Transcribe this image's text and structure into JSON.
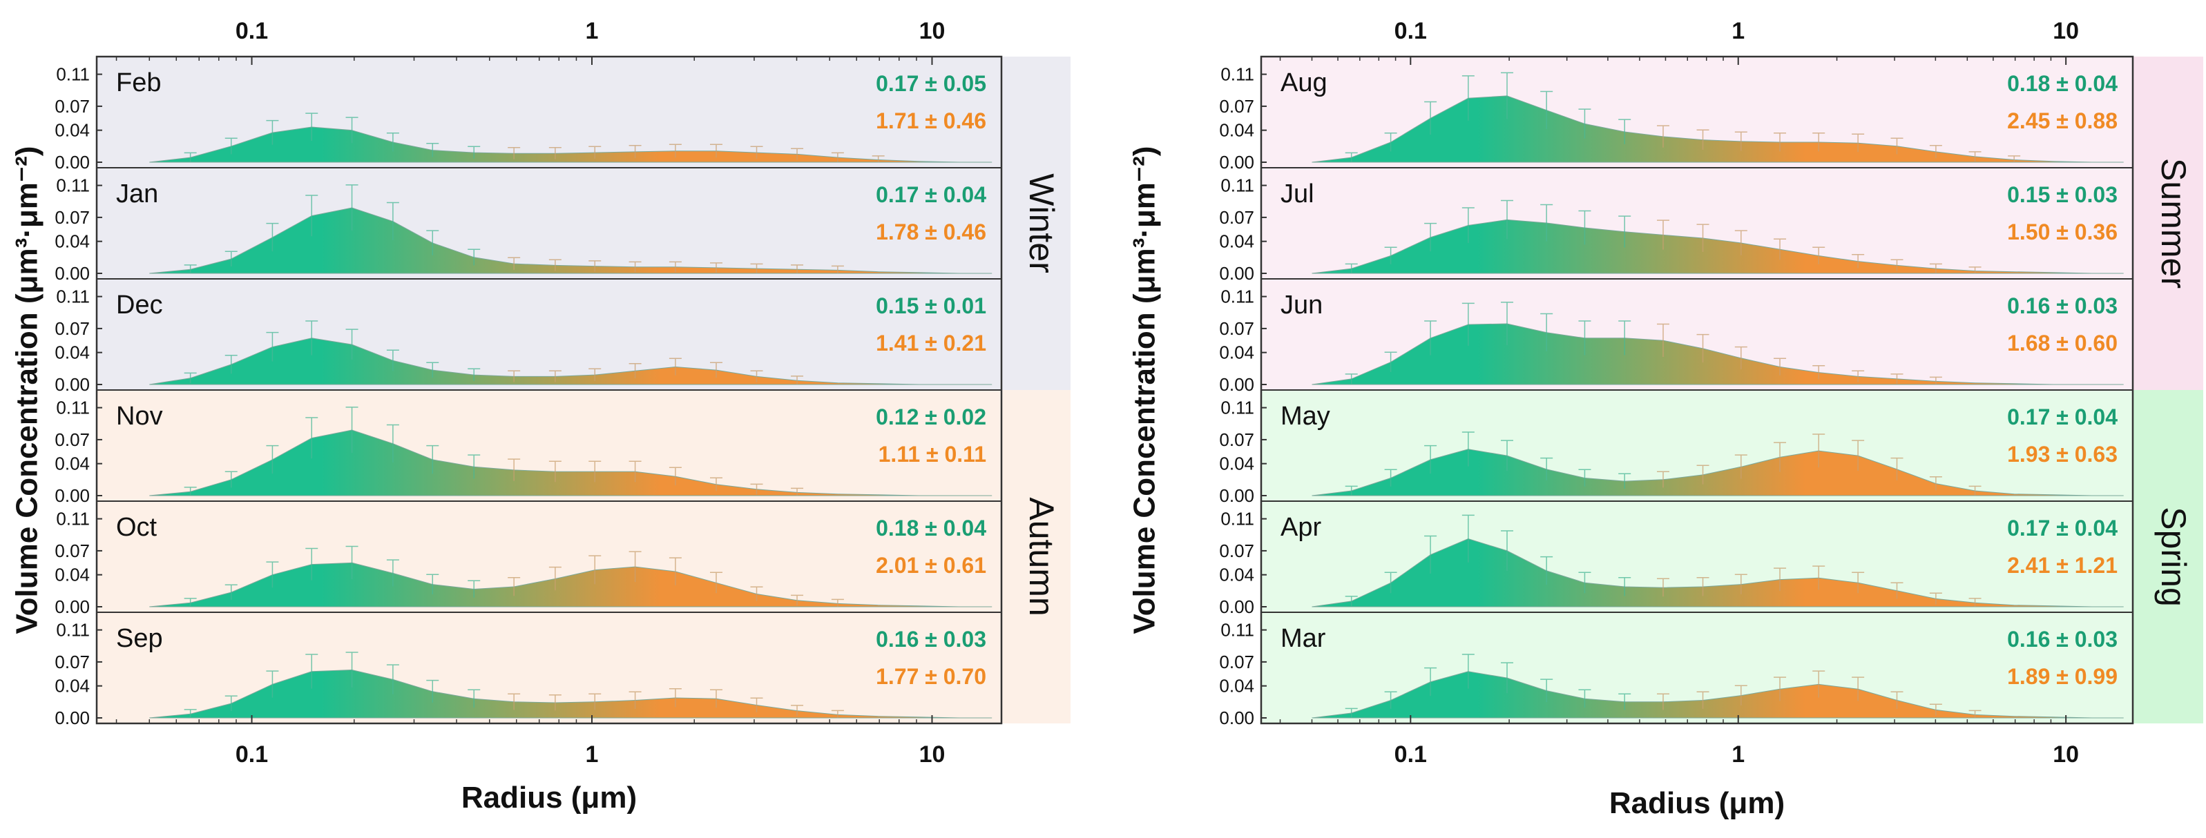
{
  "colors": {
    "fine": "#1dbf8f",
    "coarse": "#f0923a",
    "fine_text": "#1a9e73",
    "coarse_text": "#f08a24",
    "winter_bg": "#ebebf2",
    "autumn_bg": "#fdf0e7",
    "summer_bg": "#fbeef5",
    "spring_bg": "#e6fbe9",
    "summer_band": "#f9e2ee",
    "spring_band": "#d0f7d7"
  },
  "chart_data": [
    {
      "type": "area",
      "xlabel": "Radius (μm)",
      "ylabel": "Volume Concentration (μm³·μm⁻²)",
      "x_scale": "log",
      "xlim": [
        0.035,
        16
      ],
      "xticks": [
        "0.1",
        "1",
        "10"
      ],
      "ylim": [
        0,
        0.12
      ],
      "yticks": [
        "0.00",
        "0.04",
        "0.07",
        "0.11"
      ],
      "grid": false,
      "seasons": [
        {
          "name": "Winter",
          "band": "winter",
          "panels": 3
        },
        {
          "name": "Autumn",
          "band": "autumn",
          "panels": 3
        }
      ],
      "panels": [
        {
          "month": "Feb",
          "fine_text": "0.17 ± 0.05",
          "coarse_text": "1.71 ± 0.46",
          "season": "winter",
          "x": [
            0.05,
            0.066,
            0.087,
            0.115,
            0.15,
            0.197,
            0.26,
            0.34,
            0.45,
            0.59,
            0.78,
            1.02,
            1.34,
            1.76,
            2.32,
            3.05,
            4.01,
            5.28,
            6.95,
            9.14,
            12.0,
            15.0
          ],
          "y": [
            0.0,
            0.006,
            0.02,
            0.037,
            0.044,
            0.04,
            0.025,
            0.015,
            0.012,
            0.011,
            0.011,
            0.012,
            0.013,
            0.014,
            0.014,
            0.012,
            0.01,
            0.006,
            0.003,
            0.001,
            0.0,
            0.0
          ]
        },
        {
          "month": "Jan",
          "fine_text": "0.17 ± 0.04",
          "coarse_text": "1.78 ± 0.46",
          "season": "winter",
          "x": [
            0.05,
            0.066,
            0.087,
            0.115,
            0.15,
            0.197,
            0.26,
            0.34,
            0.45,
            0.59,
            0.78,
            1.02,
            1.34,
            1.76,
            2.32,
            3.05,
            4.01,
            5.28,
            6.95,
            9.14,
            12.0,
            15.0
          ],
          "y": [
            0.0,
            0.005,
            0.018,
            0.045,
            0.072,
            0.082,
            0.065,
            0.038,
            0.02,
            0.012,
            0.01,
            0.009,
            0.008,
            0.008,
            0.007,
            0.006,
            0.005,
            0.004,
            0.002,
            0.001,
            0.0,
            0.0
          ]
        },
        {
          "month": "Dec",
          "fine_text": "0.15 ± 0.01",
          "coarse_text": "1.41 ± 0.21",
          "season": "winter",
          "x": [
            0.05,
            0.066,
            0.087,
            0.115,
            0.15,
            0.197,
            0.26,
            0.34,
            0.45,
            0.59,
            0.78,
            1.02,
            1.34,
            1.76,
            2.32,
            3.05,
            4.01,
            5.28,
            6.95,
            9.14,
            12.0,
            15.0
          ],
          "y": [
            0.0,
            0.008,
            0.025,
            0.047,
            0.058,
            0.05,
            0.03,
            0.018,
            0.012,
            0.01,
            0.01,
            0.012,
            0.017,
            0.022,
            0.018,
            0.01,
            0.005,
            0.002,
            0.001,
            0.0,
            0.0,
            0.0
          ]
        },
        {
          "month": "Nov",
          "fine_text": "0.12 ± 0.02",
          "coarse_text": "1.11 ± 0.11",
          "season": "autumn",
          "x": [
            0.05,
            0.066,
            0.087,
            0.115,
            0.15,
            0.197,
            0.26,
            0.34,
            0.45,
            0.59,
            0.78,
            1.02,
            1.34,
            1.76,
            2.32,
            3.05,
            4.01,
            5.28,
            6.95,
            9.14,
            12.0,
            15.0
          ],
          "y": [
            0.0,
            0.005,
            0.02,
            0.045,
            0.072,
            0.082,
            0.065,
            0.045,
            0.036,
            0.032,
            0.03,
            0.03,
            0.03,
            0.024,
            0.014,
            0.008,
            0.004,
            0.002,
            0.001,
            0.0,
            0.0,
            0.0
          ]
        },
        {
          "month": "Oct",
          "fine_text": "0.18 ± 0.04",
          "coarse_text": "2.01 ± 0.61",
          "season": "autumn",
          "x": [
            0.05,
            0.066,
            0.087,
            0.115,
            0.15,
            0.197,
            0.26,
            0.34,
            0.45,
            0.59,
            0.78,
            1.02,
            1.34,
            1.76,
            2.32,
            3.05,
            4.01,
            5.28,
            6.95,
            9.14,
            12.0,
            15.0
          ],
          "y": [
            0.0,
            0.005,
            0.018,
            0.04,
            0.053,
            0.055,
            0.042,
            0.028,
            0.022,
            0.025,
            0.035,
            0.046,
            0.05,
            0.044,
            0.03,
            0.016,
            0.008,
            0.004,
            0.002,
            0.001,
            0.0,
            0.0
          ]
        },
        {
          "month": "Sep",
          "fine_text": "0.16 ± 0.03",
          "coarse_text": "1.77 ± 0.70",
          "season": "autumn",
          "x": [
            0.05,
            0.066,
            0.087,
            0.115,
            0.15,
            0.197,
            0.26,
            0.34,
            0.45,
            0.59,
            0.78,
            1.02,
            1.34,
            1.76,
            2.32,
            3.05,
            4.01,
            5.28,
            6.95,
            9.14,
            12.0,
            15.0
          ],
          "y": [
            0.0,
            0.005,
            0.018,
            0.042,
            0.058,
            0.06,
            0.048,
            0.033,
            0.024,
            0.02,
            0.019,
            0.02,
            0.022,
            0.025,
            0.024,
            0.016,
            0.009,
            0.004,
            0.002,
            0.001,
            0.0,
            0.0
          ]
        }
      ]
    },
    {
      "type": "area",
      "xlabel": "Radius (μm)",
      "ylabel": "Volume Concentration (μm³·μm⁻²)",
      "x_scale": "log",
      "xlim": [
        0.035,
        16
      ],
      "xticks": [
        "0.1",
        "1",
        "10"
      ],
      "ylim": [
        0,
        0.12
      ],
      "yticks": [
        "0.00",
        "0.04",
        "0.07",
        "0.11"
      ],
      "grid": false,
      "seasons": [
        {
          "name": "Summer",
          "band": "summer",
          "panels": 3
        },
        {
          "name": "Spring",
          "band": "spring",
          "panels": 3
        }
      ],
      "panels": [
        {
          "month": "Aug",
          "fine_text": "0.18 ± 0.04",
          "coarse_text": "2.45 ± 0.88",
          "season": "summer",
          "x": [
            0.05,
            0.066,
            0.087,
            0.115,
            0.15,
            0.197,
            0.26,
            0.34,
            0.45,
            0.59,
            0.78,
            1.02,
            1.34,
            1.76,
            2.32,
            3.05,
            4.01,
            5.28,
            6.95,
            9.14,
            12.0,
            15.0
          ],
          "y": [
            0.0,
            0.006,
            0.025,
            0.055,
            0.08,
            0.083,
            0.065,
            0.048,
            0.038,
            0.032,
            0.028,
            0.026,
            0.025,
            0.025,
            0.024,
            0.02,
            0.013,
            0.007,
            0.003,
            0.001,
            0.0,
            0.0
          ]
        },
        {
          "month": "Jul",
          "fine_text": "0.15 ± 0.03",
          "coarse_text": "1.50 ± 0.36",
          "season": "summer",
          "x": [
            0.05,
            0.066,
            0.087,
            0.115,
            0.15,
            0.197,
            0.26,
            0.34,
            0.45,
            0.59,
            0.78,
            1.02,
            1.34,
            1.76,
            2.32,
            3.05,
            4.01,
            5.28,
            6.95,
            9.14,
            12.0,
            15.0
          ],
          "y": [
            0.0,
            0.006,
            0.022,
            0.045,
            0.06,
            0.067,
            0.063,
            0.057,
            0.052,
            0.048,
            0.044,
            0.038,
            0.03,
            0.022,
            0.015,
            0.01,
            0.006,
            0.003,
            0.002,
            0.001,
            0.0,
            0.0
          ]
        },
        {
          "month": "Jun",
          "fine_text": "0.16 ± 0.03",
          "coarse_text": "1.68 ± 0.60",
          "season": "summer",
          "x": [
            0.05,
            0.066,
            0.087,
            0.115,
            0.15,
            0.197,
            0.26,
            0.34,
            0.45,
            0.59,
            0.78,
            1.02,
            1.34,
            1.76,
            2.32,
            3.05,
            4.01,
            5.28,
            6.95,
            9.14,
            12.0,
            15.0
          ],
          "y": [
            0.0,
            0.007,
            0.028,
            0.058,
            0.075,
            0.076,
            0.065,
            0.058,
            0.058,
            0.055,
            0.045,
            0.033,
            0.022,
            0.015,
            0.01,
            0.007,
            0.004,
            0.002,
            0.001,
            0.0,
            0.0,
            0.0
          ]
        },
        {
          "month": "May",
          "fine_text": "0.17 ± 0.04",
          "coarse_text": "1.93 ± 0.63",
          "season": "spring",
          "x": [
            0.05,
            0.066,
            0.087,
            0.115,
            0.15,
            0.197,
            0.26,
            0.34,
            0.45,
            0.59,
            0.78,
            1.02,
            1.34,
            1.76,
            2.32,
            3.05,
            4.01,
            5.28,
            6.95,
            9.14,
            12.0,
            15.0
          ],
          "y": [
            0.0,
            0.006,
            0.022,
            0.045,
            0.058,
            0.05,
            0.033,
            0.022,
            0.018,
            0.02,
            0.026,
            0.036,
            0.048,
            0.056,
            0.05,
            0.033,
            0.015,
            0.006,
            0.002,
            0.001,
            0.0,
            0.0
          ]
        },
        {
          "month": "Apr",
          "fine_text": "0.17 ± 0.04",
          "coarse_text": "2.41 ± 1.21",
          "season": "spring",
          "x": [
            0.05,
            0.066,
            0.087,
            0.115,
            0.15,
            0.197,
            0.26,
            0.34,
            0.45,
            0.59,
            0.78,
            1.02,
            1.34,
            1.76,
            2.32,
            3.05,
            4.01,
            5.28,
            6.95,
            9.14,
            12.0,
            15.0
          ],
          "y": [
            0.0,
            0.007,
            0.03,
            0.065,
            0.085,
            0.07,
            0.045,
            0.03,
            0.025,
            0.024,
            0.025,
            0.028,
            0.034,
            0.036,
            0.03,
            0.02,
            0.01,
            0.005,
            0.002,
            0.001,
            0.0,
            0.0
          ]
        },
        {
          "month": "Mar",
          "fine_text": "0.16 ± 0.03",
          "coarse_text": "1.89 ± 0.99",
          "season": "spring",
          "x": [
            0.05,
            0.066,
            0.087,
            0.115,
            0.15,
            0.197,
            0.26,
            0.34,
            0.45,
            0.59,
            0.78,
            1.02,
            1.34,
            1.76,
            2.32,
            3.05,
            4.01,
            5.28,
            6.95,
            9.14,
            12.0,
            15.0
          ],
          "y": [
            0.0,
            0.006,
            0.022,
            0.045,
            0.058,
            0.05,
            0.034,
            0.024,
            0.02,
            0.02,
            0.022,
            0.028,
            0.036,
            0.042,
            0.036,
            0.022,
            0.01,
            0.004,
            0.002,
            0.001,
            0.0,
            0.0
          ]
        }
      ]
    }
  ]
}
